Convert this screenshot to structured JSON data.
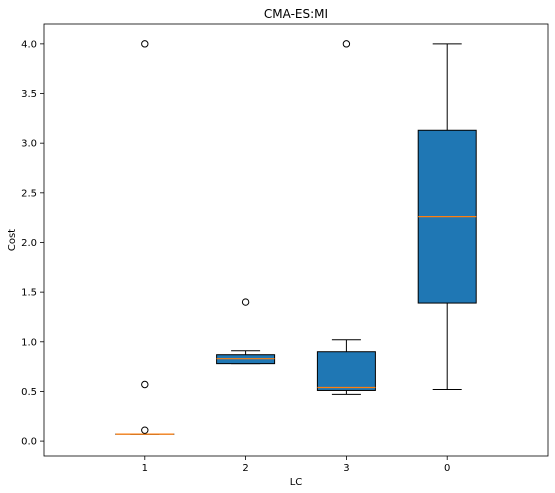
{
  "chart_data": {
    "type": "box",
    "title": "CMA-ES:MI",
    "xlabel": "LC",
    "ylabel": "Cost",
    "ylim": [
      -0.15,
      4.2
    ],
    "yticks": [
      "0.0",
      "0.5",
      "1.0",
      "1.5",
      "2.0",
      "2.5",
      "3.0",
      "3.5",
      "4.0"
    ],
    "grid": false,
    "colors": {
      "box_fill": "#1f77b4",
      "median": "#ff7f0e",
      "edge": "#000000"
    },
    "boxes": [
      {
        "category": "1",
        "whisker_low": 0.07,
        "q1": 0.07,
        "median": 0.07,
        "q3": 0.07,
        "whisker_high": 0.07,
        "outliers": [
          0.11,
          0.57,
          4.0
        ]
      },
      {
        "category": "2",
        "whisker_low": 0.78,
        "q1": 0.78,
        "median": 0.83,
        "q3": 0.87,
        "whisker_high": 0.91,
        "outliers": [
          1.4
        ]
      },
      {
        "category": "3",
        "whisker_low": 0.47,
        "q1": 0.51,
        "median": 0.54,
        "q3": 0.9,
        "whisker_high": 1.02,
        "outliers": [
          4.0
        ]
      },
      {
        "category": "0",
        "whisker_low": 0.52,
        "q1": 1.39,
        "median": 2.26,
        "q3": 3.13,
        "whisker_high": 4.0,
        "outliers": []
      }
    ]
  }
}
